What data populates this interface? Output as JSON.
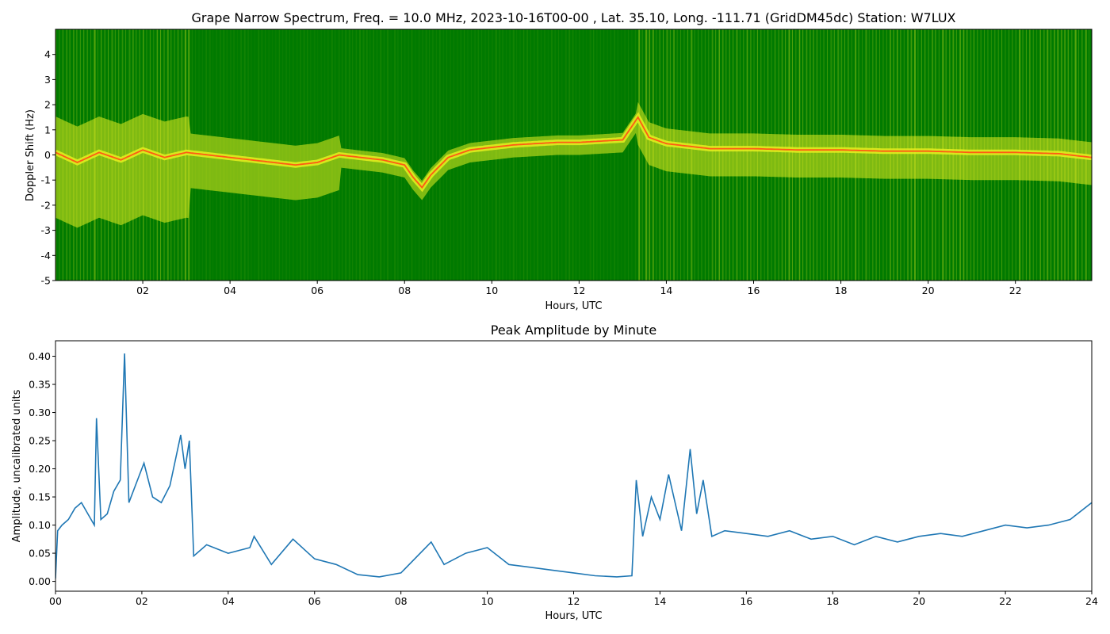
{
  "chart_data": [
    {
      "type": "heatmap",
      "title": "Grape Narrow Spectrum, Freq. = 10.0 MHz, 2023-10-16T00-00 , Lat.  35.10, Long. -111.71 (GridDM45dc) Station: W7LUX",
      "xlabel": "Hours, UTC",
      "ylabel": "Doppler Shift (Hz)",
      "xlim": [
        0,
        23.75
      ],
      "ylim": [
        -5,
        5
      ],
      "x_ticks": [
        2,
        4,
        6,
        8,
        10,
        12,
        14,
        16,
        18,
        20,
        22
      ],
      "x_tick_labels": [
        "02",
        "04",
        "06",
        "08",
        "10",
        "12",
        "14",
        "16",
        "18",
        "20",
        "22"
      ],
      "y_ticks": [
        -5,
        -4,
        -3,
        -2,
        -1,
        0,
        1,
        2,
        3,
        4
      ],
      "y_tick_labels": [
        "-5",
        "-4",
        "-3",
        "-2",
        "-1",
        "0",
        "1",
        "2",
        "3",
        "4"
      ],
      "colors": {
        "background": "#007a00",
        "mid": "#e6ef20",
        "peak": "#ff5a14"
      },
      "main_trace": {
        "x": [
          0,
          0.5,
          1,
          1.5,
          2,
          2.5,
          3,
          3.5,
          4,
          4.5,
          5,
          5.5,
          6,
          6.5,
          7,
          7.5,
          8,
          8.2,
          8.4,
          8.6,
          9,
          9.5,
          10,
          10.5,
          11,
          11.5,
          12,
          12.5,
          13,
          13.35,
          13.6,
          14,
          14.5,
          15,
          16,
          17,
          18,
          19,
          20,
          21,
          22,
          23,
          23.75
        ],
        "y": [
          0.1,
          -0.3,
          0.1,
          -0.2,
          0.2,
          -0.1,
          0.1,
          0.0,
          -0.1,
          -0.2,
          -0.3,
          -0.4,
          -0.3,
          0.0,
          -0.1,
          -0.2,
          -0.4,
          -0.9,
          -1.3,
          -0.8,
          -0.1,
          0.2,
          0.3,
          0.4,
          0.45,
          0.5,
          0.5,
          0.55,
          0.6,
          1.5,
          0.7,
          0.45,
          0.35,
          0.25,
          0.25,
          0.2,
          0.2,
          0.15,
          0.15,
          0.1,
          0.1,
          0.05,
          -0.1
        ]
      }
    },
    {
      "type": "line",
      "title": "Peak Amplitude by Minute",
      "xlabel": "Hours, UTC",
      "ylabel": "Amplitude, uncalibrated units",
      "xlim": [
        0,
        24
      ],
      "ylim": [
        -0.0175,
        0.4275
      ],
      "x_ticks": [
        0,
        2,
        4,
        6,
        8,
        10,
        12,
        14,
        16,
        18,
        20,
        22,
        24
      ],
      "x_tick_labels": [
        "00",
        "02",
        "04",
        "06",
        "08",
        "10",
        "12",
        "14",
        "16",
        "18",
        "20",
        "22",
        "24"
      ],
      "y_ticks": [
        0,
        0.05,
        0.1,
        0.15,
        0.2,
        0.25,
        0.3,
        0.35,
        0.4
      ],
      "y_tick_labels": [
        "0.00",
        "0.05",
        "0.10",
        "0.15",
        "0.20",
        "0.25",
        "0.30",
        "0.35",
        "0.40"
      ],
      "line_color": "#1f77b4",
      "series": [
        {
          "x": [
            0,
            0.05,
            0.15,
            0.3,
            0.45,
            0.6,
            0.75,
            0.9,
            0.95,
            1.05,
            1.2,
            1.35,
            1.5,
            1.6,
            1.7,
            1.85,
            2.05,
            2.25,
            2.45,
            2.65,
            2.9,
            3.0,
            3.1,
            3.2,
            3.5,
            4.0,
            4.5,
            4.6,
            5.0,
            5.5,
            6.0,
            6.5,
            7.0,
            7.5,
            8.0,
            8.7,
            9.0,
            9.5,
            10.0,
            10.5,
            11.0,
            11.5,
            12.0,
            12.5,
            13.0,
            13.35,
            13.45,
            13.6,
            13.8,
            14.0,
            14.2,
            14.5,
            14.7,
            14.85,
            15.0,
            15.2,
            15.5,
            16.0,
            16.5,
            17.0,
            17.5,
            18.0,
            18.5,
            19.0,
            19.5,
            20.0,
            20.5,
            21.0,
            21.5,
            22.0,
            22.5,
            23.0,
            23.5,
            24.0
          ],
          "y": [
            0.005,
            0.09,
            0.1,
            0.11,
            0.13,
            0.14,
            0.12,
            0.1,
            0.29,
            0.11,
            0.12,
            0.16,
            0.18,
            0.405,
            0.14,
            0.17,
            0.21,
            0.15,
            0.14,
            0.17,
            0.26,
            0.2,
            0.25,
            0.045,
            0.065,
            0.05,
            0.06,
            0.08,
            0.03,
            0.075,
            0.04,
            0.03,
            0.012,
            0.008,
            0.015,
            0.07,
            0.03,
            0.05,
            0.06,
            0.03,
            0.025,
            0.02,
            0.015,
            0.01,
            0.008,
            0.01,
            0.18,
            0.08,
            0.15,
            0.11,
            0.19,
            0.09,
            0.235,
            0.12,
            0.18,
            0.08,
            0.09,
            0.085,
            0.08,
            0.09,
            0.075,
            0.08,
            0.065,
            0.08,
            0.07,
            0.08,
            0.085,
            0.08,
            0.09,
            0.1,
            0.095,
            0.1,
            0.11,
            0.14
          ]
        }
      ]
    }
  ]
}
